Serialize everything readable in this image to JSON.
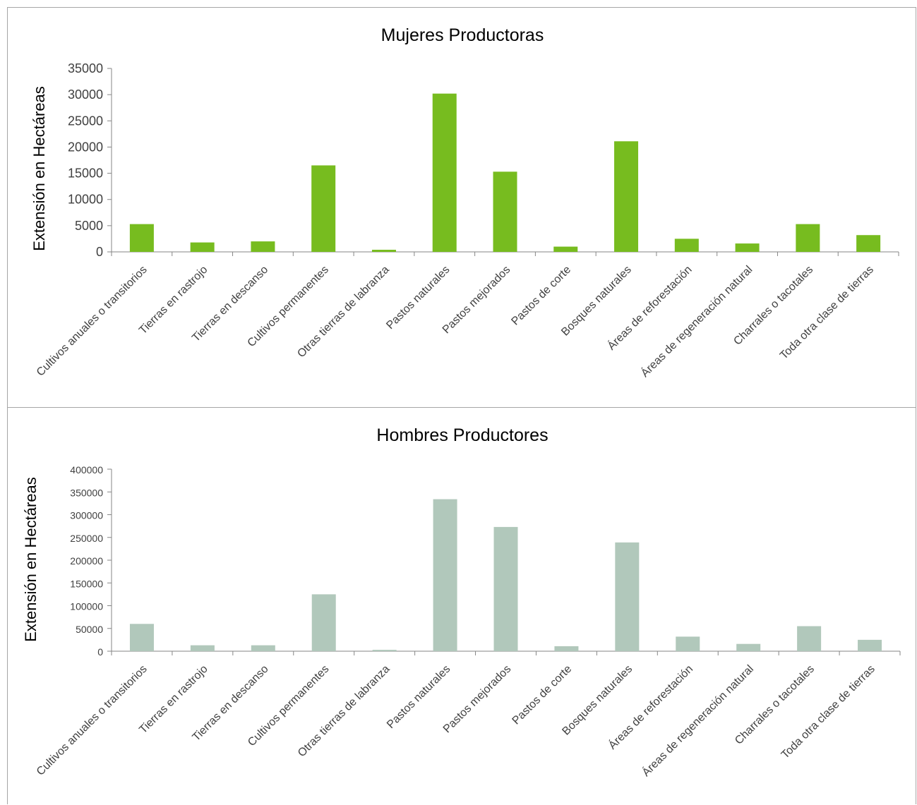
{
  "chart_data": [
    {
      "type": "bar",
      "title": "Mujeres Productoras",
      "xlabel": "",
      "ylabel": "Extensión en Hectáreas",
      "categories": [
        "Cultivos anuales o transitorios",
        "Tierras en rastrojo",
        "Tierras en descanso",
        "Cultivos permanentes",
        "Otras tierras de labranza",
        "Pastos naturales",
        "Pastos mejorados",
        "Pastos de corte",
        "Bosques naturales",
        "Áreas de reforestación",
        "Áreas de regeneración natural",
        "Charrales o tacotales",
        "Toda otra clase de tierras"
      ],
      "values": [
        5300,
        1800,
        2000,
        16500,
        400,
        30200,
        15300,
        1000,
        21100,
        2500,
        1600,
        5300,
        3200
      ],
      "ylim": [
        0,
        35000
      ],
      "yticks": [
        "0",
        "5000",
        "10000",
        "15000",
        "20000",
        "25000",
        "30000",
        "35000"
      ],
      "color": "#77bc1f",
      "grid": false
    },
    {
      "type": "bar",
      "title": "Hombres Productores",
      "xlabel": "",
      "ylabel": "Extensión en Hectáreas",
      "categories": [
        "Cultivos anuales o transitorios",
        "Tierras en rastrojo",
        "Tierras en descanso",
        "Cultivos permanentes",
        "Otras tierras de labranza",
        "Pastos naturales",
        "Pastos mejorados",
        "Pastos de corte",
        "Bosques naturales",
        "Áreas de reforestación",
        "Áreas de regeneración natural",
        "Charrales o tacotales",
        "Toda otra clase de tierras"
      ],
      "values": [
        60000,
        13000,
        13000,
        125000,
        3000,
        334000,
        273000,
        11000,
        239000,
        32000,
        16000,
        55000,
        25000
      ],
      "ylim": [
        0,
        400000
      ],
      "yticks": [
        "0",
        "50000",
        "100000",
        "150000",
        "200000",
        "250000",
        "300000",
        "350000",
        "400000"
      ],
      "color": "#b1c8bb",
      "grid": false
    }
  ]
}
